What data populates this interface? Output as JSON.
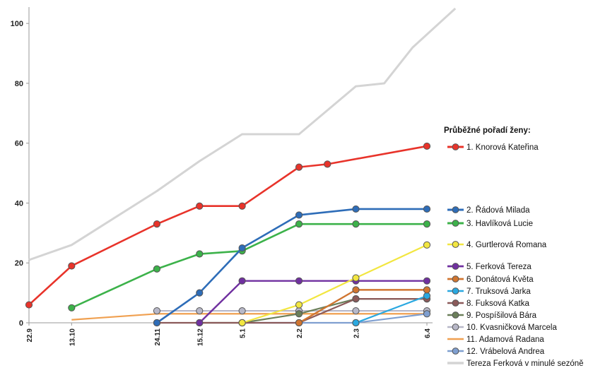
{
  "chart_data": {
    "type": "line",
    "title": "",
    "xlabel": "",
    "ylabel": "",
    "x_ticks": [
      "22.9",
      "13.10",
      "24.11",
      "15.12",
      "5.1",
      "2.2",
      "2.3",
      "6.4"
    ],
    "x_tick_days": [
      0,
      21,
      63,
      84,
      105,
      133,
      161,
      196
    ],
    "ylim": [
      0,
      105
    ],
    "y_ticks": [
      0,
      20,
      40,
      60,
      80,
      100
    ],
    "grid": false,
    "legend_title": "Průběžné pořadí ženy:",
    "legend_position": "right",
    "series": [
      {
        "name": "1. Knorová Kateřina",
        "color": "#e8332a",
        "width": 2.6,
        "markers": true,
        "points": [
          [
            "22.9",
            6
          ],
          [
            "13.10",
            19
          ],
          [
            "24.11",
            33
          ],
          [
            "15.12",
            39
          ],
          [
            "5.1",
            39
          ],
          [
            "2.2",
            52
          ],
          [
            "16.2",
            53
          ],
          [
            "6.4",
            59
          ]
        ]
      },
      {
        "name": "2. Řádová Milada",
        "color": "#2e6db8",
        "width": 2.6,
        "markers": true,
        "points": [
          [
            "24.11",
            0
          ],
          [
            "15.12",
            10
          ],
          [
            "5.1",
            25
          ],
          [
            "2.2",
            36
          ],
          [
            "2.3",
            38
          ],
          [
            "6.4",
            38
          ]
        ]
      },
      {
        "name": "3. Havlíková Lucie",
        "color": "#3cb24a",
        "width": 2.6,
        "markers": true,
        "points": [
          [
            "13.10",
            5
          ],
          [
            "24.11",
            18
          ],
          [
            "15.12",
            23
          ],
          [
            "5.1",
            24
          ],
          [
            "2.2",
            33
          ],
          [
            "2.3",
            33
          ],
          [
            "6.4",
            33
          ]
        ]
      },
      {
        "name": "4. Gurtlerová Romana",
        "color": "#f2e640",
        "width": 2.2,
        "markers": true,
        "points": [
          [
            "5.1",
            0
          ],
          [
            "2.2",
            6
          ],
          [
            "2.3",
            15
          ],
          [
            "6.4",
            26
          ]
        ]
      },
      {
        "name": "5. Ferková Tereza",
        "color": "#7030a0",
        "width": 2.4,
        "markers": true,
        "points": [
          [
            "15.12",
            0
          ],
          [
            "5.1",
            14
          ],
          [
            "2.2",
            14
          ],
          [
            "2.3",
            14
          ],
          [
            "6.4",
            14
          ]
        ]
      },
      {
        "name": "6. Donátová Květa",
        "color": "#d07530",
        "width": 2.4,
        "markers": true,
        "points": [
          [
            "2.2",
            0
          ],
          [
            "2.3",
            11
          ],
          [
            "6.4",
            11
          ]
        ]
      },
      {
        "name": "7. Truksová Jarka",
        "color": "#2aa8e0",
        "width": 2.2,
        "markers": true,
        "points": [
          [
            "2.3",
            0
          ],
          [
            "6.4",
            9
          ]
        ]
      },
      {
        "name": "8. Fuksová Katka",
        "color": "#8b5a5a",
        "width": 2.2,
        "markers": true,
        "points": [
          [
            "24.11",
            0
          ],
          [
            "15.12",
            0
          ],
          [
            "5.1",
            0
          ],
          [
            "2.2",
            0
          ],
          [
            "2.3",
            8
          ],
          [
            "6.4",
            8
          ]
        ]
      },
      {
        "name": "9. Pospíšilová Bára",
        "color": "#6b7f5a",
        "width": 2.2,
        "markers": true,
        "points": [
          [
            "15.12",
            0
          ],
          [
            "5.1",
            0
          ],
          [
            "2.2",
            3
          ],
          [
            "2.3",
            8
          ],
          [
            "6.4",
            8
          ]
        ]
      },
      {
        "name": "10. Kvasničková Marcela",
        "color": "#b8b8c8",
        "width": 2.2,
        "markers": true,
        "points": [
          [
            "24.11",
            4
          ],
          [
            "15.12",
            4
          ],
          [
            "5.1",
            4
          ],
          [
            "2.2",
            4
          ],
          [
            "2.3",
            4
          ],
          [
            "6.4",
            4
          ]
        ]
      },
      {
        "name": "11. Adamová Radana",
        "color": "#f0a050",
        "width": 2.2,
        "markers": false,
        "points": [
          [
            "13.10",
            1
          ],
          [
            "24.11",
            3
          ],
          [
            "15.12",
            3
          ],
          [
            "5.1",
            3
          ],
          [
            "2.2",
            3
          ],
          [
            "2.3",
            3
          ],
          [
            "6.4",
            3
          ]
        ]
      },
      {
        "name": "12. Vrábelová Andrea",
        "color": "#7f9fd0",
        "width": 2.2,
        "markers": true,
        "points": [
          [
            "5.1",
            0
          ],
          [
            "2.2",
            0
          ],
          [
            "2.3",
            0
          ],
          [
            "6.4",
            3
          ]
        ]
      },
      {
        "name": "Tereza Ferková v minulé sezóně",
        "color": "#d4d4d4",
        "width": 3,
        "markers": false,
        "points": [
          [
            "22.9",
            21
          ],
          [
            "13.10",
            26
          ],
          [
            "24.11",
            44
          ],
          [
            "15.12",
            54
          ],
          [
            "5.1",
            63
          ],
          [
            "2.2",
            63
          ],
          [
            "2.3",
            79
          ],
          [
            "16.3",
            80
          ],
          [
            "30.3",
            92
          ],
          [
            "20.4",
            105
          ]
        ]
      }
    ]
  }
}
